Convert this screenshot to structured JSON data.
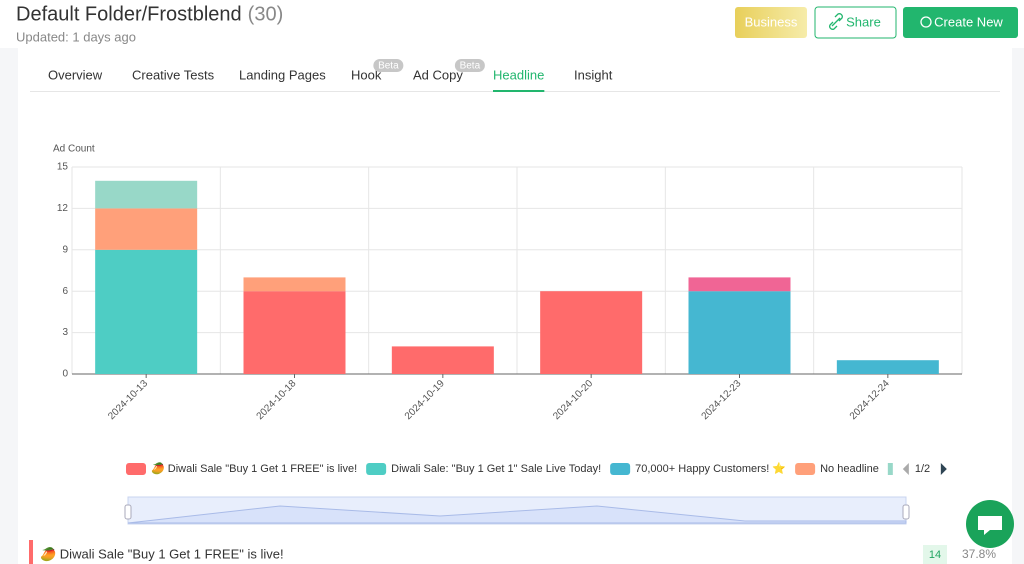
{
  "header": {
    "title": "Default Folder/Frostblend",
    "count": "(30)",
    "updated": "Updated: 1 days ago",
    "buttons": [
      "Business",
      "Share",
      "Create New"
    ]
  },
  "tabs": [
    {
      "label": "Overview"
    },
    {
      "label": "Creative Tests"
    },
    {
      "label": "Landing Pages"
    },
    {
      "label": "Hook",
      "badge": "Beta"
    },
    {
      "label": "Ad Copy",
      "badge": "Beta"
    },
    {
      "label": "Headline",
      "active": true
    },
    {
      "label": "Insight"
    }
  ],
  "chart_data": {
    "type": "stacked-bar",
    "y_label": "Ad Count",
    "categories": [
      "2024-10-13",
      "2024-10-18",
      "2024-10-19",
      "2024-10-20",
      "2024-12-23",
      "2024-12-24"
    ],
    "series": [
      {
        "name": "🥭 Diwali Sale \"Buy 1 Get 1 FREE\" is live!",
        "color": "#ff6b6b",
        "values": [
          0,
          6,
          2,
          6,
          0,
          0
        ]
      },
      {
        "name": "Diwali Sale: \"Buy 1 Get 1\" Sale Live Today!",
        "color": "#4ecdc4",
        "values": [
          9,
          0,
          0,
          0,
          0,
          0
        ]
      },
      {
        "name": "70,000+ Happy Customers! ⭐",
        "color": "#45b7d1",
        "values": [
          0,
          0,
          0,
          0,
          6,
          1
        ]
      },
      {
        "name": "No headline",
        "color": "#ffa07a",
        "values": [
          3,
          1,
          0,
          0,
          0,
          0
        ]
      },
      {
        "color": "#98d8c8",
        "values": [
          2,
          0,
          0,
          0,
          0,
          0
        ]
      },
      {
        "color": "#f06595",
        "values": [
          0,
          0,
          0,
          0,
          1,
          0
        ]
      }
    ],
    "ylim": [
      0,
      15
    ],
    "yticks": [
      0,
      3,
      6,
      9,
      12,
      15
    ],
    "grid": true,
    "legend_page": "1/2"
  },
  "summary": {
    "label": "🥭 Diwali Sale \"Buy 1 Get 1 FREE\" is live!",
    "count": "14",
    "share": "37.8%"
  }
}
